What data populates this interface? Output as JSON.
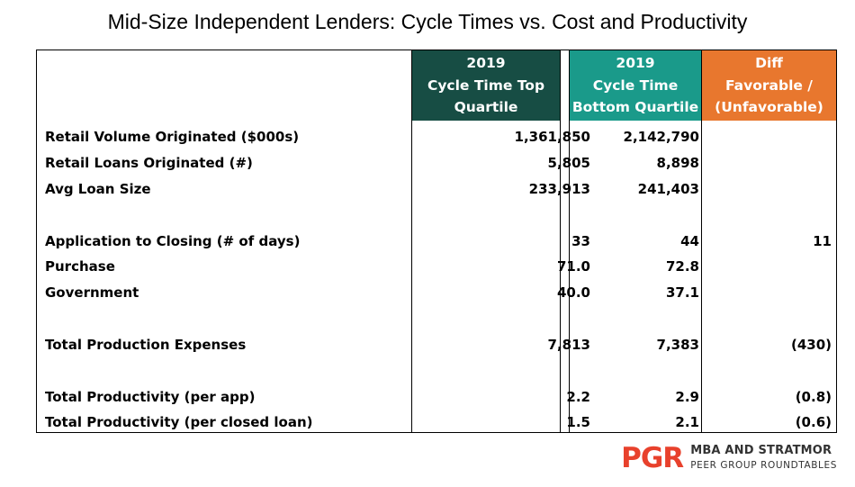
{
  "title": "Mid-Size Independent Lenders: Cycle Times vs. Cost and Productivity",
  "colors": {
    "top_quartile_header": "#174d44",
    "bottom_quartile_header": "#1a9a8a",
    "diff_header": "#e8772e",
    "logo_accent": "#e8412c"
  },
  "headers": {
    "top_quartile": [
      "2019",
      "Cycle Time Top",
      "Quartile"
    ],
    "bottom_quartile": [
      "2019",
      "Cycle Time",
      "Bottom Quartile"
    ],
    "diff": [
      "Diff",
      "Favorable /",
      "(Unfavorable)"
    ]
  },
  "rows": [
    {
      "label": "Retail Volume Originated ($000s)",
      "top": "1,361,850",
      "bottom": "2,142,790",
      "diff": ""
    },
    {
      "label": "Retail Loans Originated (#)",
      "top": "5,805",
      "bottom": "8,898",
      "diff": ""
    },
    {
      "label": "Avg Loan Size",
      "top": "233,913",
      "bottom": "241,403",
      "diff": ""
    },
    {
      "label": "Application to Closing (# of days)",
      "top": "33",
      "bottom": "44",
      "diff": "11"
    },
    {
      "label": "Purchase",
      "top": "71.0",
      "bottom": "72.8",
      "diff": ""
    },
    {
      "label": "Government",
      "top": "40.0",
      "bottom": "37.1",
      "diff": ""
    },
    {
      "label": "Total Production Expenses",
      "top": "7,813",
      "bottom": "7,383",
      "diff": "(430)"
    },
    {
      "label": "Total Productivity (per app)",
      "top": "2.2",
      "bottom": "2.9",
      "diff": "(0.8)"
    },
    {
      "label": "Total Productivity (per closed loan)",
      "top": "1.5",
      "bottom": "2.1",
      "diff": "(0.6)"
    }
  ],
  "logo": {
    "brand": "PGR",
    "line1": "MBA AND STRATMOR",
    "line2": "PEER GROUP ROUNDTABLES"
  }
}
